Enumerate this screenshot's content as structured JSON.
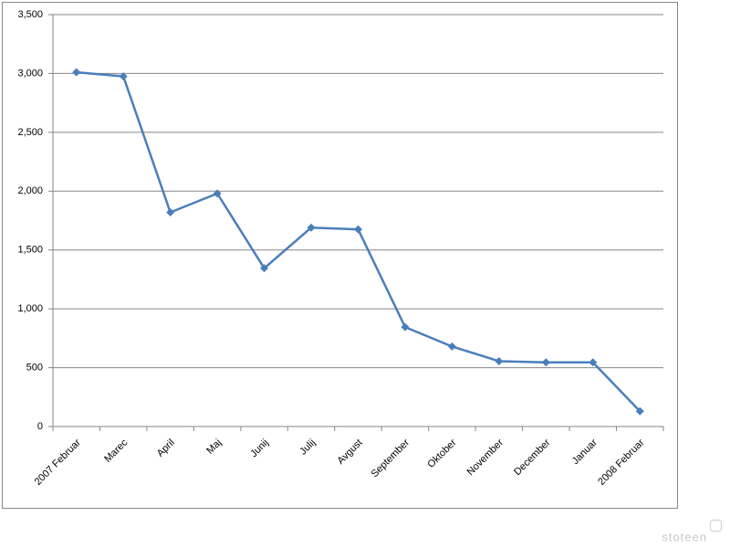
{
  "chart_data": {
    "type": "line",
    "categories": [
      "2007 Februar",
      "Marec",
      "April",
      "Maj",
      "Junij",
      "Julij",
      "Avgust",
      "September",
      "Oktober",
      "November",
      "December",
      "Januar",
      "2008 Februar"
    ],
    "series": [
      {
        "color": "#4a7ebb",
        "values": [
          3010,
          2975,
          1820,
          1980,
          1345,
          1690,
          1675,
          845,
          680,
          555,
          545,
          545,
          130
        ]
      }
    ],
    "ylim": [
      0,
      3500
    ],
    "yticks": [
      0,
      500,
      {
        "value": 1000,
        "label": "1,000"
      },
      {
        "value": 1500,
        "label": "1,500"
      },
      {
        "value": 2000,
        "label": "2,000"
      },
      {
        "value": 2500,
        "label": "2,500"
      },
      {
        "value": 3000,
        "label": "3,000"
      },
      {
        "value": 3500,
        "label": "3,500"
      }
    ],
    "grid": true
  },
  "watermark": "stoteen"
}
